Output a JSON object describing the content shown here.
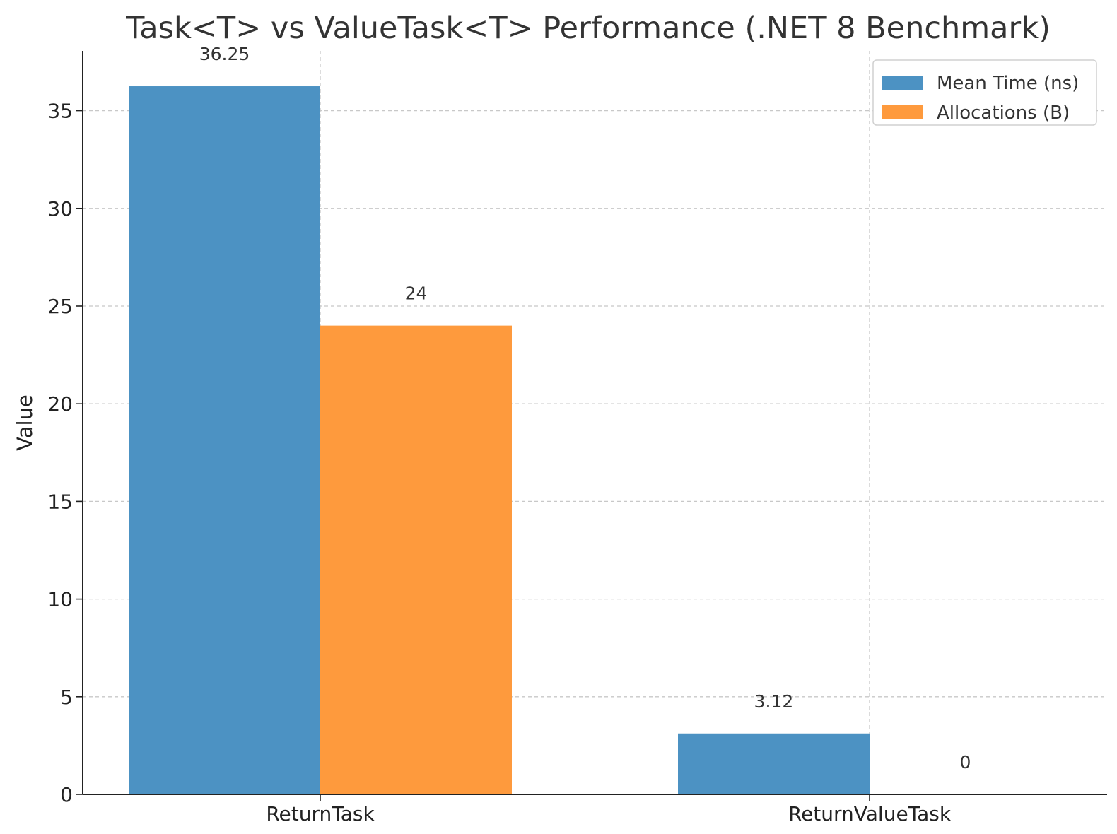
{
  "chart_data": {
    "type": "bar",
    "title": "Task<T> vs ValueTask<T> Performance (.NET 8 Benchmark)",
    "xlabel": "",
    "ylabel": "Value",
    "categories": [
      "ReturnTask",
      "ReturnValueTask"
    ],
    "series": [
      {
        "name": "Mean Time (ns)",
        "values": [
          36.25,
          3.12
        ],
        "labels": [
          "36.25",
          "3.12"
        ],
        "color": "#4c92c3"
      },
      {
        "name": "Allocations (B)",
        "values": [
          24,
          0
        ],
        "labels": [
          "24",
          "0"
        ],
        "color": "#fe9a3d"
      }
    ],
    "ylim": [
      0,
      38.06
    ],
    "yticks": [
      0,
      5,
      10,
      15,
      20,
      25,
      30,
      35
    ],
    "grid": true,
    "legend_position": "top-right"
  }
}
